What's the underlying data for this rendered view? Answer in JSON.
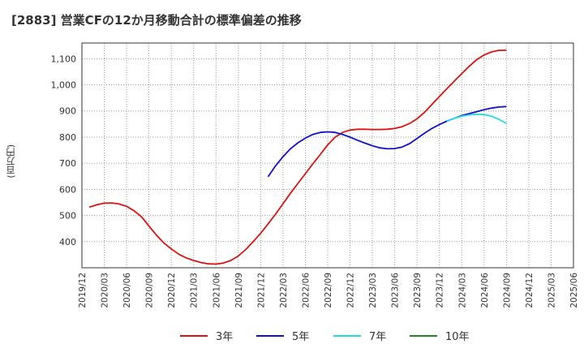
{
  "title": "[2883]  営業CFの12か月移動合計の標準偏差の推移",
  "unit_label": "(百万円)",
  "chart_data": {
    "type": "line",
    "title": "[2883]  営業CFの12か月移動合計の標準偏差の推移",
    "ylabel": "(百万円)",
    "xlabel": "",
    "ylim": [
      300,
      1160
    ],
    "y_ticks": [
      400,
      500,
      600,
      700,
      800,
      900,
      1000,
      1100
    ],
    "y_tick_labels": [
      "400",
      "500",
      "600",
      "700",
      "800",
      "900",
      "1,000",
      "1,100"
    ],
    "x_tick_labels": [
      "2019/12",
      "2020/03",
      "2020/06",
      "2020/09",
      "2020/12",
      "2021/03",
      "2021/06",
      "2021/09",
      "2021/12",
      "2022/03",
      "2022/06",
      "2022/09",
      "2022/12",
      "2023/03",
      "2023/06",
      "2023/09",
      "2023/12",
      "2024/03",
      "2024/06",
      "2024/09",
      "2024/12",
      "2025/03",
      "2025/06"
    ],
    "grid": true,
    "legend_position": "bottom",
    "series": [
      {
        "name": "3年",
        "color": "#dd1111",
        "x": [
          "2020/01",
          "2020/02",
          "2020/03",
          "2020/04",
          "2020/05",
          "2020/06",
          "2020/07",
          "2020/08",
          "2020/09",
          "2020/10",
          "2020/11",
          "2020/12",
          "2021/01",
          "2021/02",
          "2021/03",
          "2021/04",
          "2021/05",
          "2021/06",
          "2021/07",
          "2021/08",
          "2021/09",
          "2021/10",
          "2021/11",
          "2021/12",
          "2022/01",
          "2022/02",
          "2022/03",
          "2022/04",
          "2022/05",
          "2022/06",
          "2022/07",
          "2022/08",
          "2022/09",
          "2022/10",
          "2022/11",
          "2022/12",
          "2023/01",
          "2023/02",
          "2023/03",
          "2023/04",
          "2023/05",
          "2023/06",
          "2023/07",
          "2023/08",
          "2023/09",
          "2023/10",
          "2023/11",
          "2023/12",
          "2024/01",
          "2024/02",
          "2024/03",
          "2024/04",
          "2024/05",
          "2024/06",
          "2024/07",
          "2024/08",
          "2024/09"
        ],
        "values": [
          532,
          541,
          547,
          548,
          544,
          535,
          518,
          495,
          460,
          425,
          395,
          372,
          352,
          338,
          328,
          320,
          315,
          314,
          318,
          328,
          345,
          370,
          400,
          432,
          468,
          505,
          545,
          585,
          623,
          660,
          697,
          733,
          770,
          800,
          818,
          827,
          830,
          830,
          829,
          829,
          830,
          833,
          840,
          852,
          870,
          895,
          925,
          955,
          985,
          1014,
          1043,
          1071,
          1096,
          1114,
          1126,
          1132,
          1132
        ]
      },
      {
        "name": "5年",
        "color": "#1111cc",
        "x": [
          "2022/01",
          "2022/02",
          "2022/03",
          "2022/04",
          "2022/05",
          "2022/06",
          "2022/07",
          "2022/08",
          "2022/09",
          "2022/10",
          "2022/11",
          "2022/12",
          "2023/01",
          "2023/02",
          "2023/03",
          "2023/04",
          "2023/05",
          "2023/06",
          "2023/07",
          "2023/08",
          "2023/09",
          "2023/10",
          "2023/11",
          "2023/12",
          "2024/01",
          "2024/02",
          "2024/03",
          "2024/04",
          "2024/05",
          "2024/06",
          "2024/07",
          "2024/08",
          "2024/09"
        ],
        "values": [
          648,
          690,
          725,
          755,
          778,
          796,
          810,
          818,
          820,
          818,
          810,
          800,
          788,
          777,
          767,
          759,
          755,
          756,
          762,
          775,
          795,
          815,
          833,
          848,
          861,
          872,
          882,
          890,
          897,
          905,
          911,
          915,
          917
        ]
      },
      {
        "name": "7年",
        "color": "#22dddd",
        "x": [
          "2024/01",
          "2024/02",
          "2024/03",
          "2024/04",
          "2024/05",
          "2024/06",
          "2024/07",
          "2024/08",
          "2024/09"
        ],
        "values": [
          861,
          872,
          880,
          885,
          887,
          886,
          880,
          868,
          852
        ]
      },
      {
        "name": "10年",
        "color": "#228822",
        "x": [],
        "values": []
      }
    ]
  }
}
